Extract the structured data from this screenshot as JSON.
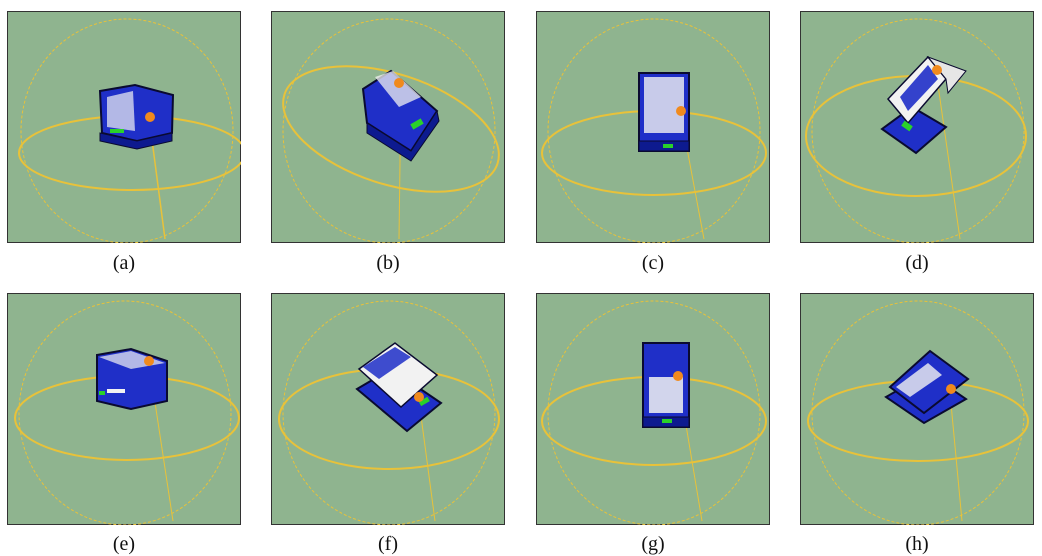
{
  "colors": {
    "background": "#8fb48f",
    "frame": "#333333",
    "orbit": "#e8c23a",
    "sun": "#f08a1e",
    "device_body": "#1f2fc8",
    "device_outline": "#0a0a30",
    "panel_white": "#f2f2f2",
    "indicator_green": "#2ad12a"
  },
  "panels": [
    {
      "caption": "(a)"
    },
    {
      "caption": "(b)"
    },
    {
      "caption": "(c)"
    },
    {
      "caption": "(d)"
    },
    {
      "caption": "(e)"
    },
    {
      "caption": "(f)"
    },
    {
      "caption": "(g)"
    },
    {
      "caption": "(h)"
    }
  ]
}
